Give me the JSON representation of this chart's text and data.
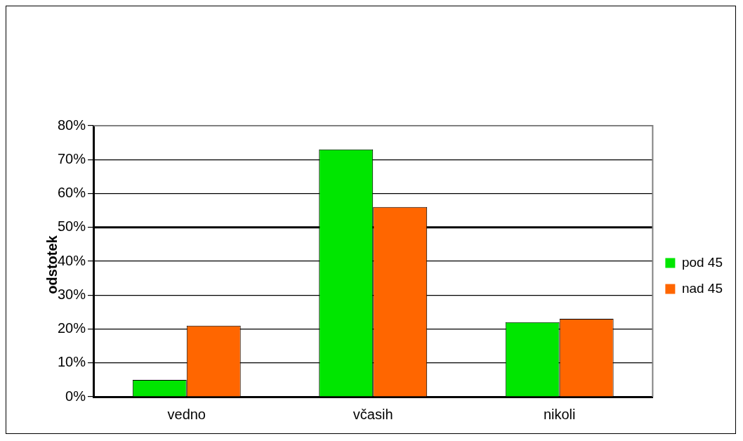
{
  "chart_data": {
    "type": "bar",
    "ylabel": "odstotek",
    "categories": [
      "vedno",
      "včasih",
      "nikoli"
    ],
    "series": [
      {
        "name": "pod 45",
        "color": "#00e600",
        "values": [
          5,
          73,
          22
        ]
      },
      {
        "name": "nad 45",
        "color": "#ff6600",
        "values": [
          21,
          56,
          23
        ]
      }
    ],
    "ylim": [
      0,
      80
    ],
    "yticks": [
      {
        "value": 0,
        "label": "0%"
      },
      {
        "value": 10,
        "label": "10%"
      },
      {
        "value": 20,
        "label": "20%"
      },
      {
        "value": 30,
        "label": "30%"
      },
      {
        "value": 40,
        "label": "40%"
      },
      {
        "value": 50,
        "label": "50%"
      },
      {
        "value": 60,
        "label": "60%"
      },
      {
        "value": 70,
        "label": "70%"
      },
      {
        "value": 80,
        "label": "80%"
      }
    ],
    "ref_lines": [
      {
        "axis": "y",
        "value": 50,
        "color": "#000000"
      }
    ],
    "grid": "y",
    "legend": "right"
  }
}
